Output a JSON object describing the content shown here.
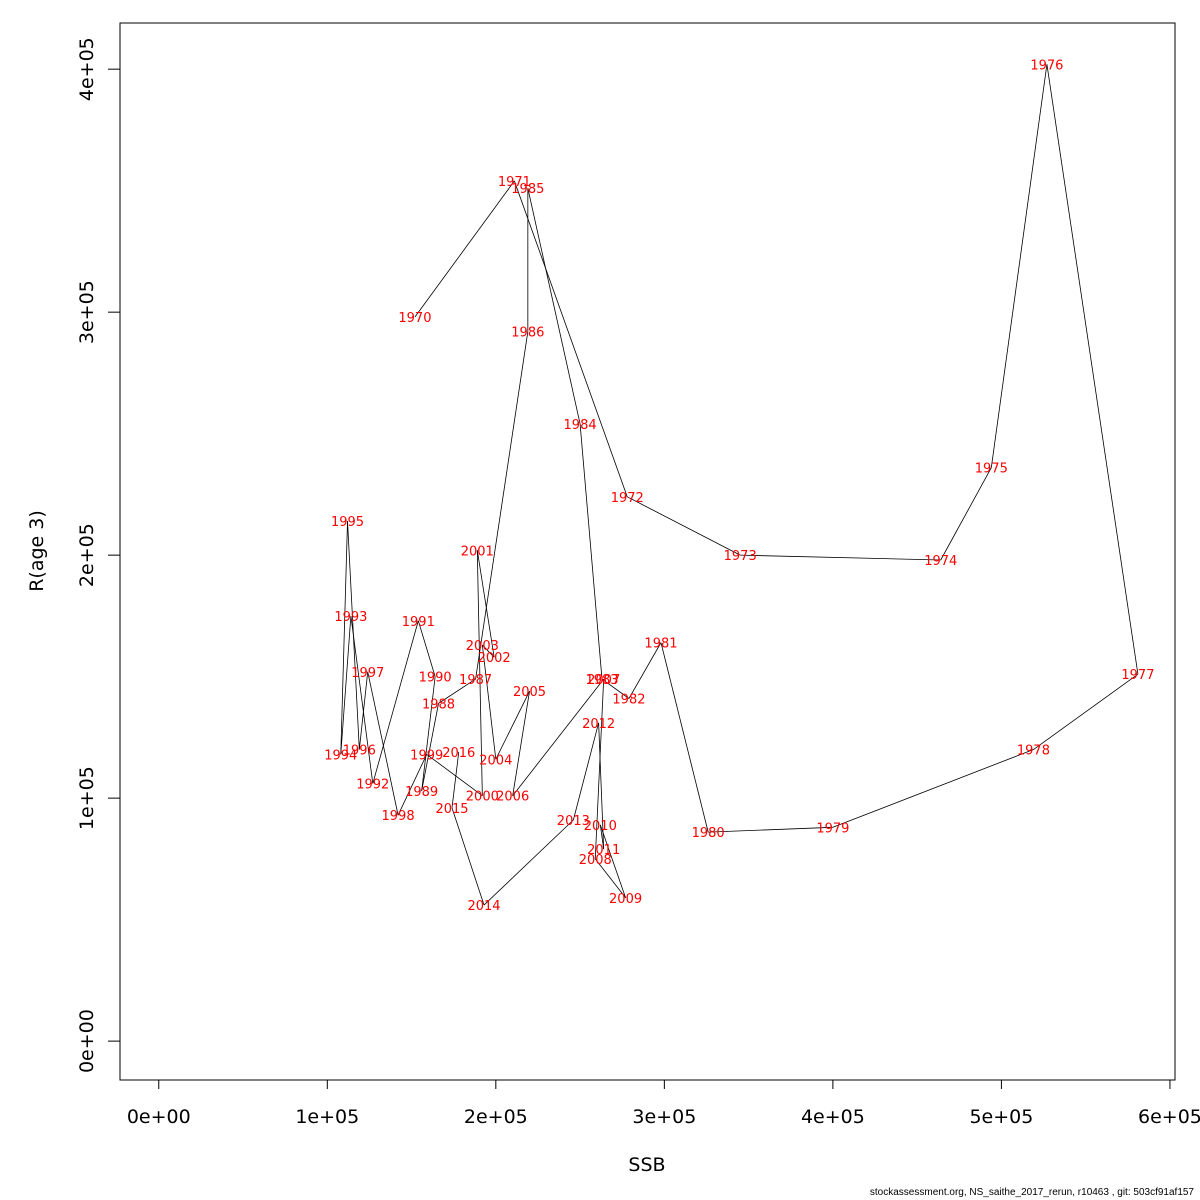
{
  "chart_data": {
    "type": "line",
    "title": "",
    "xlabel": "SSB",
    "ylabel": "R(age 3)",
    "xlim": [
      -23000,
      603000
    ],
    "ylim": [
      -16000,
      419000
    ],
    "x_ticks": [
      0,
      100000,
      200000,
      300000,
      400000,
      500000,
      600000
    ],
    "x_tick_labels": [
      "0e+00",
      "1e+05",
      "2e+05",
      "3e+05",
      "4e+05",
      "5e+05",
      "6e+05"
    ],
    "y_ticks": [
      0,
      100000,
      200000,
      300000,
      400000
    ],
    "y_tick_labels": [
      "0e+00",
      "1e+05",
      "2e+05",
      "3e+05",
      "4e+05"
    ],
    "grid": false,
    "line_color": "#000000",
    "label_color": "#ff0000",
    "points": [
      {
        "label": "1970",
        "x": 152000,
        "y": 298000
      },
      {
        "label": "1971",
        "x": 211000,
        "y": 354000
      },
      {
        "label": "1972",
        "x": 278000,
        "y": 224000
      },
      {
        "label": "1973",
        "x": 345000,
        "y": 200000
      },
      {
        "label": "1974",
        "x": 464000,
        "y": 198000
      },
      {
        "label": "1975",
        "x": 494000,
        "y": 236000
      },
      {
        "label": "1976",
        "x": 527000,
        "y": 402000
      },
      {
        "label": "1977",
        "x": 581000,
        "y": 151000
      },
      {
        "label": "1978",
        "x": 519000,
        "y": 120000
      },
      {
        "label": "1979",
        "x": 400000,
        "y": 88000
      },
      {
        "label": "1980",
        "x": 326000,
        "y": 86000
      },
      {
        "label": "1981",
        "x": 298000,
        "y": 164000
      },
      {
        "label": "1982",
        "x": 279000,
        "y": 141000
      },
      {
        "label": "1983",
        "x": 263000,
        "y": 149000
      },
      {
        "label": "1984",
        "x": 250000,
        "y": 254000
      },
      {
        "label": "1985",
        "x": 219000,
        "y": 351000
      },
      {
        "label": "1986",
        "x": 219000,
        "y": 292000
      },
      {
        "label": "1987",
        "x": 188000,
        "y": 149000
      },
      {
        "label": "1988",
        "x": 166000,
        "y": 139000
      },
      {
        "label": "1989",
        "x": 156000,
        "y": 103000
      },
      {
        "label": "1990",
        "x": 164000,
        "y": 150000
      },
      {
        "label": "1991",
        "x": 154000,
        "y": 173000
      },
      {
        "label": "1992",
        "x": 127000,
        "y": 106000
      },
      {
        "label": "1993",
        "x": 114000,
        "y": 175000
      },
      {
        "label": "1994",
        "x": 108000,
        "y": 118000
      },
      {
        "label": "1995",
        "x": 112000,
        "y": 214000
      },
      {
        "label": "1996",
        "x": 119000,
        "y": 120000
      },
      {
        "label": "1997",
        "x": 124000,
        "y": 152000
      },
      {
        "label": "1998",
        "x": 142000,
        "y": 93000
      },
      {
        "label": "1999",
        "x": 159000,
        "y": 118000
      },
      {
        "label": "2000",
        "x": 192000,
        "y": 101000
      },
      {
        "label": "2001",
        "x": 189000,
        "y": 202000
      },
      {
        "label": "2002",
        "x": 199000,
        "y": 158000
      },
      {
        "label": "2003",
        "x": 192000,
        "y": 163000
      },
      {
        "label": "2004",
        "x": 200000,
        "y": 116000
      },
      {
        "label": "2005",
        "x": 220000,
        "y": 144000
      },
      {
        "label": "2006",
        "x": 210000,
        "y": 101000
      },
      {
        "label": "2007",
        "x": 264000,
        "y": 149000
      },
      {
        "label": "2008",
        "x": 259000,
        "y": 75000
      },
      {
        "label": "2009",
        "x": 277000,
        "y": 59000
      },
      {
        "label": "2010",
        "x": 262000,
        "y": 89000
      },
      {
        "label": "2011",
        "x": 264000,
        "y": 79000
      },
      {
        "label": "2012",
        "x": 261000,
        "y": 131000
      },
      {
        "label": "2013",
        "x": 246000,
        "y": 91000
      },
      {
        "label": "2014",
        "x": 193000,
        "y": 56000
      },
      {
        "label": "2015",
        "x": 174000,
        "y": 96000
      },
      {
        "label": "2016",
        "x": 178000,
        "y": 119000
      }
    ]
  },
  "footer": "stockassessment.org, NS_saithe_2017_rerun, r10463 , git: 503cf91af157"
}
